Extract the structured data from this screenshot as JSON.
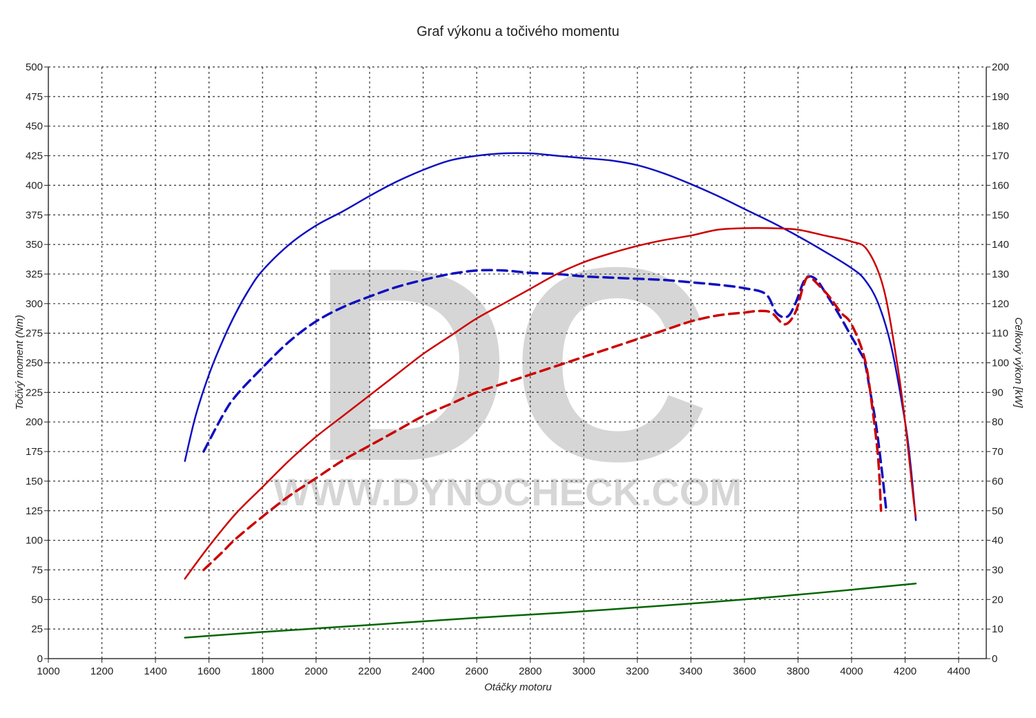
{
  "chart_data": {
    "type": "line",
    "title": "Graf výkonu a točivého momentu",
    "xlabel": "Otáčky motoru",
    "ylabel_left": "Točivý moment (Nm)",
    "ylabel_right": "Celkový výkon [kW]",
    "xlim": [
      1000,
      4500
    ],
    "ylim_left": [
      0,
      500
    ],
    "ylim_right": [
      0,
      200
    ],
    "x_ticks": [
      "1000",
      "1200",
      "1400",
      "1600",
      "1800",
      "2000",
      "2200",
      "2400",
      "2600",
      "2800",
      "3000",
      "3200",
      "3400",
      "3600",
      "3800",
      "4000",
      "4200",
      "4400"
    ],
    "y_left_ticks": [
      "0",
      "25",
      "50",
      "75",
      "100",
      "125",
      "150",
      "175",
      "200",
      "225",
      "250",
      "275",
      "300",
      "325",
      "350",
      "375",
      "400",
      "425",
      "450",
      "475",
      "500"
    ],
    "y_right_ticks": [
      "0",
      "10",
      "20",
      "30",
      "40",
      "50",
      "60",
      "70",
      "80",
      "90",
      "100",
      "110",
      "120",
      "130",
      "140",
      "150",
      "160",
      "170",
      "180",
      "190",
      "200"
    ],
    "grid": true,
    "watermark": {
      "logo": "DC",
      "text": "WWW.DYNOCHECK.COM"
    },
    "series": [
      {
        "color": "#1010c0",
        "axis": "left",
        "style": "solid",
        "points": [
          [
            1510,
            167
          ],
          [
            1550,
            205
          ],
          [
            1600,
            240
          ],
          [
            1650,
            268
          ],
          [
            1700,
            292
          ],
          [
            1750,
            312
          ],
          [
            1800,
            328
          ],
          [
            1900,
            350
          ],
          [
            2000,
            366
          ],
          [
            2100,
            378
          ],
          [
            2200,
            391
          ],
          [
            2300,
            403
          ],
          [
            2400,
            413
          ],
          [
            2500,
            421
          ],
          [
            2600,
            425
          ],
          [
            2700,
            427
          ],
          [
            2800,
            427
          ],
          [
            2900,
            425
          ],
          [
            3000,
            423
          ],
          [
            3100,
            421
          ],
          [
            3200,
            417
          ],
          [
            3300,
            410
          ],
          [
            3400,
            401
          ],
          [
            3500,
            391
          ],
          [
            3600,
            380
          ],
          [
            3700,
            369
          ],
          [
            3800,
            357
          ],
          [
            3900,
            344
          ],
          [
            4000,
            330
          ],
          [
            4050,
            320
          ],
          [
            4100,
            300
          ],
          [
            4150,
            262
          ],
          [
            4200,
            200
          ],
          [
            4220,
            165
          ],
          [
            4240,
            117
          ]
        ]
      },
      {
        "color": "#1010c0",
        "axis": "left",
        "style": "dashed",
        "points": [
          [
            1580,
            175
          ],
          [
            1650,
            205
          ],
          [
            1700,
            222
          ],
          [
            1800,
            246
          ],
          [
            1900,
            268
          ],
          [
            2000,
            285
          ],
          [
            2100,
            297
          ],
          [
            2200,
            306
          ],
          [
            2300,
            314
          ],
          [
            2400,
            320
          ],
          [
            2500,
            325
          ],
          [
            2600,
            328
          ],
          [
            2700,
            328
          ],
          [
            2800,
            326
          ],
          [
            2900,
            325
          ],
          [
            3000,
            323
          ],
          [
            3100,
            322
          ],
          [
            3200,
            321
          ],
          [
            3300,
            320
          ],
          [
            3400,
            318
          ],
          [
            3500,
            316
          ],
          [
            3600,
            313
          ],
          [
            3680,
            308
          ],
          [
            3720,
            292
          ],
          [
            3760,
            289
          ],
          [
            3790,
            300
          ],
          [
            3820,
            318
          ],
          [
            3840,
            323
          ],
          [
            3870,
            320
          ],
          [
            3900,
            310
          ],
          [
            3950,
            292
          ],
          [
            4000,
            272
          ],
          [
            4030,
            260
          ],
          [
            4050,
            250
          ],
          [
            4070,
            225
          ],
          [
            4090,
            200
          ],
          [
            4110,
            165
          ],
          [
            4130,
            125
          ]
        ]
      },
      {
        "color": "#cc0000",
        "axis": "right",
        "style": "solid",
        "points": [
          [
            1510,
            27
          ],
          [
            1600,
            38
          ],
          [
            1700,
            49
          ],
          [
            1800,
            58
          ],
          [
            1900,
            67
          ],
          [
            2000,
            75
          ],
          [
            2100,
            82
          ],
          [
            2200,
            89
          ],
          [
            2300,
            96
          ],
          [
            2400,
            103
          ],
          [
            2500,
            109
          ],
          [
            2600,
            115
          ],
          [
            2700,
            120
          ],
          [
            2800,
            125
          ],
          [
            2900,
            130
          ],
          [
            3000,
            134
          ],
          [
            3100,
            137
          ],
          [
            3200,
            139.5
          ],
          [
            3300,
            141.5
          ],
          [
            3400,
            143
          ],
          [
            3500,
            145
          ],
          [
            3600,
            145.5
          ],
          [
            3700,
            145.5
          ],
          [
            3800,
            145
          ],
          [
            3900,
            143
          ],
          [
            4000,
            141
          ],
          [
            4060,
            138
          ],
          [
            4120,
            125
          ],
          [
            4170,
            100
          ],
          [
            4200,
            80
          ],
          [
            4230,
            55
          ],
          [
            4240,
            48
          ]
        ]
      },
      {
        "color": "#cc0000",
        "axis": "right",
        "style": "dashed",
        "points": [
          [
            1580,
            30
          ],
          [
            1650,
            36
          ],
          [
            1700,
            40.5
          ],
          [
            1800,
            48
          ],
          [
            1900,
            55
          ],
          [
            2000,
            61
          ],
          [
            2100,
            67
          ],
          [
            2200,
            72
          ],
          [
            2300,
            77
          ],
          [
            2400,
            82
          ],
          [
            2500,
            86
          ],
          [
            2600,
            90
          ],
          [
            2700,
            93
          ],
          [
            2800,
            96
          ],
          [
            2900,
            99
          ],
          [
            3000,
            102
          ],
          [
            3100,
            105
          ],
          [
            3200,
            108
          ],
          [
            3300,
            111
          ],
          [
            3400,
            114
          ],
          [
            3500,
            116
          ],
          [
            3600,
            117
          ],
          [
            3650,
            117.5
          ],
          [
            3700,
            117
          ],
          [
            3750,
            113
          ],
          [
            3790,
            117
          ],
          [
            3820,
            126
          ],
          [
            3840,
            129
          ],
          [
            3880,
            126
          ],
          [
            3920,
            122
          ],
          [
            3960,
            117
          ],
          [
            4000,
            113
          ],
          [
            4050,
            101
          ],
          [
            4080,
            83
          ],
          [
            4100,
            67
          ],
          [
            4110,
            50
          ]
        ]
      },
      {
        "color": "#006600",
        "axis": "right",
        "style": "solid",
        "points": [
          [
            1510,
            7.1
          ],
          [
            1600,
            7.7
          ],
          [
            1800,
            9
          ],
          [
            2000,
            10.2
          ],
          [
            2200,
            11.4
          ],
          [
            2400,
            12.6
          ],
          [
            2600,
            13.8
          ],
          [
            2800,
            14.9
          ],
          [
            3000,
            16
          ],
          [
            3200,
            17.3
          ],
          [
            3400,
            18.6
          ],
          [
            3600,
            20
          ],
          [
            3800,
            21.6
          ],
          [
            4000,
            23.3
          ],
          [
            4240,
            25.4
          ]
        ]
      }
    ]
  }
}
